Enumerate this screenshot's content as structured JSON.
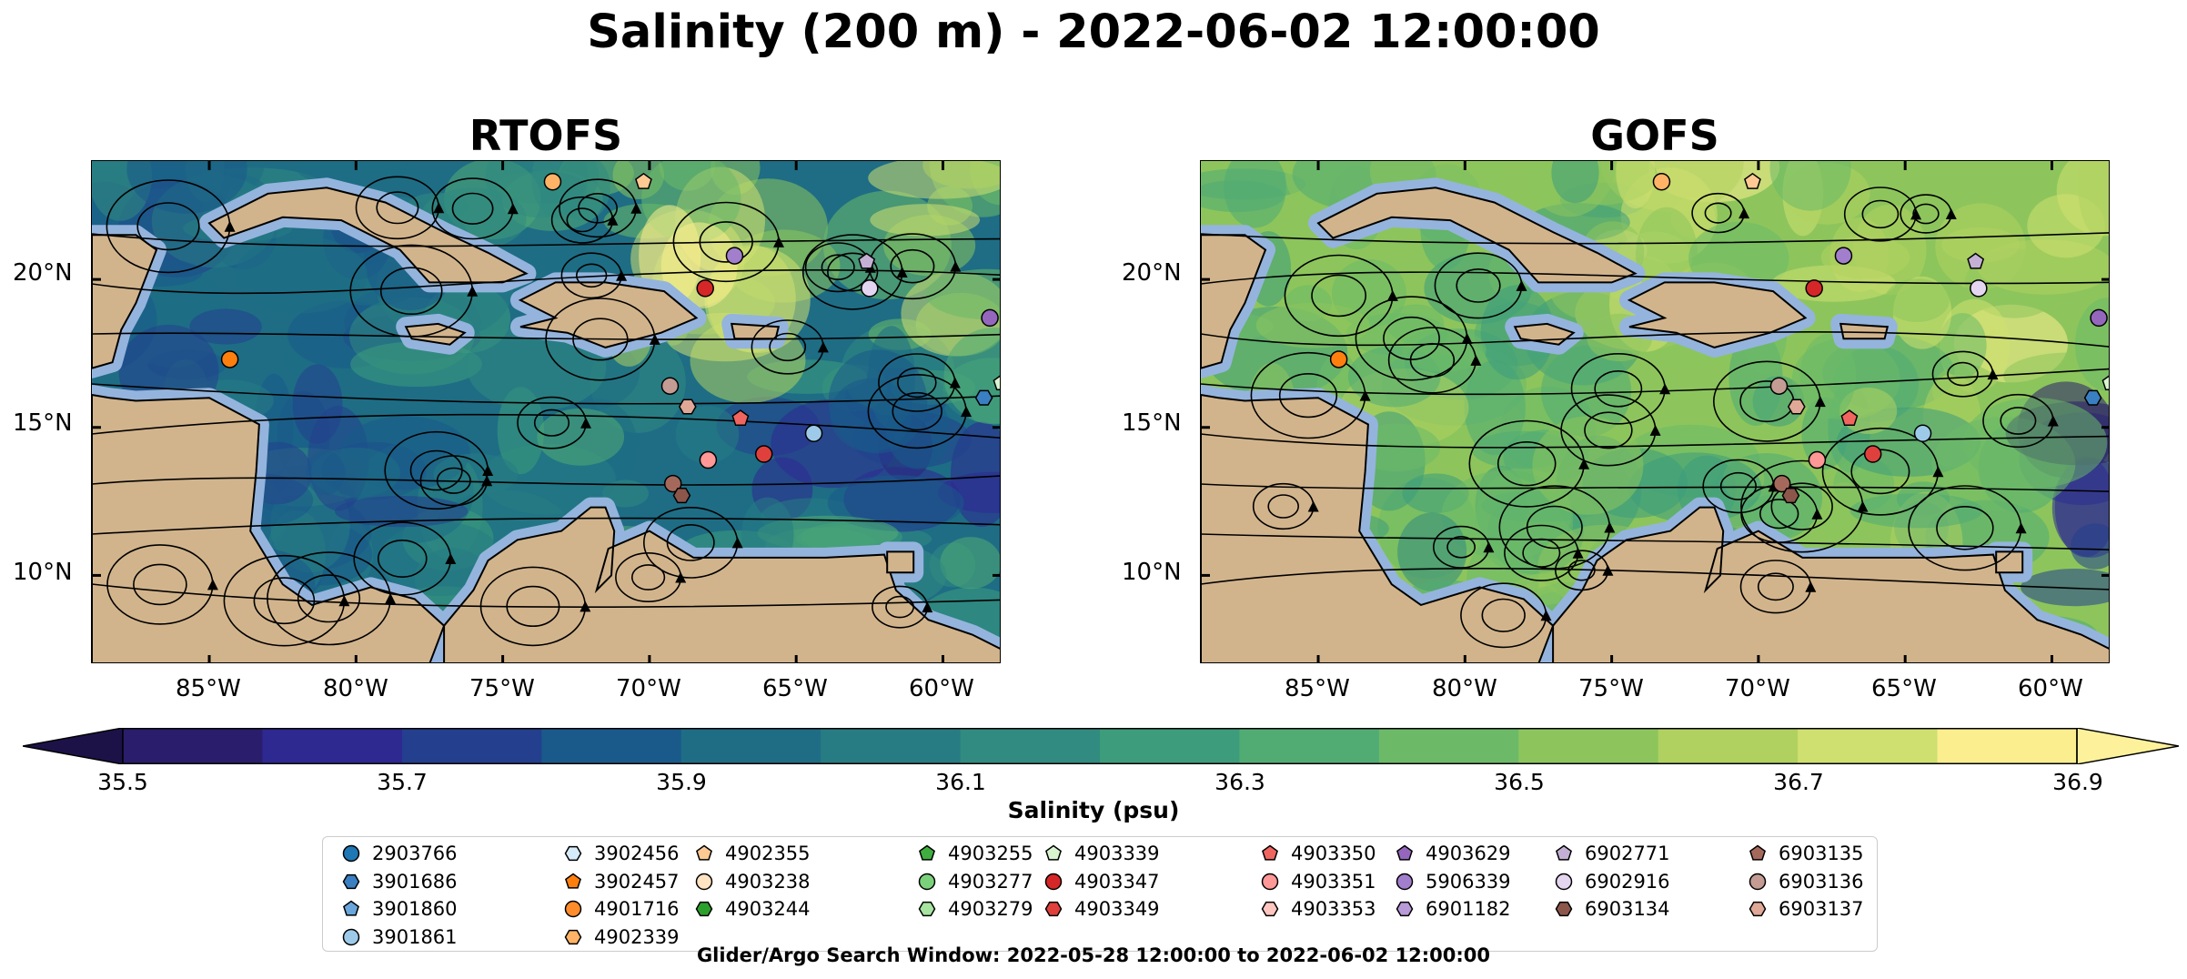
{
  "title": "Salinity (200 m) - 2022-06-02 12:00:00",
  "panels": [
    {
      "title": "RTOFS"
    },
    {
      "title": "GOFS"
    }
  ],
  "axes": {
    "lat_ticks": [
      "20°N",
      "15°N",
      "10°N"
    ],
    "lon_ticks": [
      "85°W",
      "80°W",
      "75°W",
      "70°W",
      "65°W",
      "60°W"
    ],
    "lon_range": [
      -89,
      -58
    ],
    "lat_range": [
      7,
      24
    ]
  },
  "colorbar": {
    "label": "Salinity (psu)",
    "ticks": [
      "35.5",
      "35.7",
      "35.9",
      "36.1",
      "36.3",
      "36.5",
      "36.7",
      "36.9"
    ],
    "range": [
      35.5,
      36.9
    ],
    "extend": "both",
    "colors": [
      "#2a1d6b",
      "#2e2891",
      "#233f8e",
      "#1a5a8a",
      "#1e6d85",
      "#277c83",
      "#318b80",
      "#3c9c7b",
      "#51ac74",
      "#6cba68",
      "#8dc55c",
      "#b0d160",
      "#cfe070",
      "#fbee8e"
    ]
  },
  "map_colors": {
    "land": "#d2b48c",
    "ocean": "#94b4dd",
    "deep": "#27195f"
  },
  "legend": {
    "columns": [
      [
        {
          "id": "2903766",
          "marker": "circle",
          "color": "#1f77b4"
        },
        {
          "id": "3901686",
          "marker": "hexagon",
          "color": "#3a7fc2"
        },
        {
          "id": "3901860",
          "marker": "pentagon",
          "color": "#6aa6dc"
        },
        {
          "id": "3901861",
          "marker": "circle",
          "color": "#9ecae9"
        }
      ],
      [
        {
          "id": "3902456",
          "marker": "hexagon",
          "color": "#d6ebfa"
        },
        {
          "id": "3902457",
          "marker": "pentagon",
          "color": "#ff7f0e"
        },
        {
          "id": "4901716",
          "marker": "circle",
          "color": "#ff8c2a"
        },
        {
          "id": "4902339",
          "marker": "hexagon",
          "color": "#ffb366"
        }
      ],
      [
        {
          "id": "4902355",
          "marker": "pentagon",
          "color": "#ffc994"
        },
        {
          "id": "4903238",
          "marker": "circle",
          "color": "#ffe3c2"
        },
        {
          "id": "4903244",
          "marker": "hexagon",
          "color": "#2ca02c"
        }
      ],
      [
        {
          "id": "4903255",
          "marker": "pentagon",
          "color": "#3fae3f"
        },
        {
          "id": "4903277",
          "marker": "circle",
          "color": "#7bd17b"
        },
        {
          "id": "4903279",
          "marker": "hexagon",
          "color": "#a6e4a0"
        }
      ],
      [
        {
          "id": "4903339",
          "marker": "pentagon",
          "color": "#d8f5d0"
        },
        {
          "id": "4903347",
          "marker": "circle",
          "color": "#d62728"
        },
        {
          "id": "4903349",
          "marker": "hexagon",
          "color": "#e0403c"
        }
      ],
      [
        {
          "id": "4903350",
          "marker": "pentagon",
          "color": "#f0655f"
        },
        {
          "id": "4903351",
          "marker": "circle",
          "color": "#ff9896"
        },
        {
          "id": "4903353",
          "marker": "hexagon",
          "color": "#ffc6c0"
        }
      ],
      [
        {
          "id": "4903629",
          "marker": "pentagon",
          "color": "#9467bd"
        },
        {
          "id": "5906339",
          "marker": "circle",
          "color": "#a27fcc"
        },
        {
          "id": "6901182",
          "marker": "hexagon",
          "color": "#b89ad8"
        }
      ],
      [
        {
          "id": "6902771",
          "marker": "pentagon",
          "color": "#c5b0d5"
        },
        {
          "id": "6902916",
          "marker": "circle",
          "color": "#e4d6f0"
        },
        {
          "id": "6903134",
          "marker": "hexagon",
          "color": "#8c564b"
        }
      ],
      [
        {
          "id": "6903135",
          "marker": "pentagon",
          "color": "#a5695c"
        },
        {
          "id": "6903136",
          "marker": "circle",
          "color": "#c49c94"
        },
        {
          "id": "6903137",
          "marker": "hexagon",
          "color": "#e0a896"
        }
      ]
    ]
  },
  "floats": [
    {
      "lon": -84.3,
      "lat": 17.3,
      "color": "#ff7f0e",
      "marker": "circle"
    },
    {
      "lon": -73.3,
      "lat": 23.3,
      "color": "#ffb366",
      "marker": "circle"
    },
    {
      "lon": -68.1,
      "lat": 19.7,
      "color": "#d62728",
      "marker": "circle"
    },
    {
      "lon": -67.1,
      "lat": 20.8,
      "color": "#a27fcc",
      "marker": "circle"
    },
    {
      "lon": -62.5,
      "lat": 19.7,
      "color": "#e4d6f0",
      "marker": "circle"
    },
    {
      "lon": -62.6,
      "lat": 20.6,
      "color": "#c5b0d5",
      "marker": "pentagon"
    },
    {
      "lon": -58.4,
      "lat": 18.7,
      "color": "#9467bd",
      "marker": "circle"
    },
    {
      "lon": -69.3,
      "lat": 16.4,
      "color": "#c49c94",
      "marker": "circle"
    },
    {
      "lon": -68.7,
      "lat": 15.7,
      "color": "#e0a896",
      "marker": "hexagon"
    },
    {
      "lon": -66.9,
      "lat": 15.3,
      "color": "#f0655f",
      "marker": "pentagon"
    },
    {
      "lon": -66.1,
      "lat": 14.1,
      "color": "#e0403c",
      "marker": "circle"
    },
    {
      "lon": -68.0,
      "lat": 13.9,
      "color": "#ff9896",
      "marker": "circle"
    },
    {
      "lon": -64.4,
      "lat": 14.8,
      "color": "#9ecae9",
      "marker": "circle"
    },
    {
      "lon": -69.2,
      "lat": 13.1,
      "color": "#a5695c",
      "marker": "circle"
    },
    {
      "lon": -68.9,
      "lat": 12.7,
      "color": "#8c564b",
      "marker": "hexagon"
    },
    {
      "lon": -58.0,
      "lat": 16.5,
      "color": "#d8f5d0",
      "marker": "pentagon"
    },
    {
      "lon": -58.6,
      "lat": 16.0,
      "color": "#3a7fc2",
      "marker": "hexagon"
    },
    {
      "lon": -70.2,
      "lat": 23.3,
      "color": "#ffc994",
      "marker": "pentagon"
    }
  ],
  "footer": "Glider/Argo Search Window: 2022-05-28 12:00:00 to 2022-06-02 12:00:00"
}
